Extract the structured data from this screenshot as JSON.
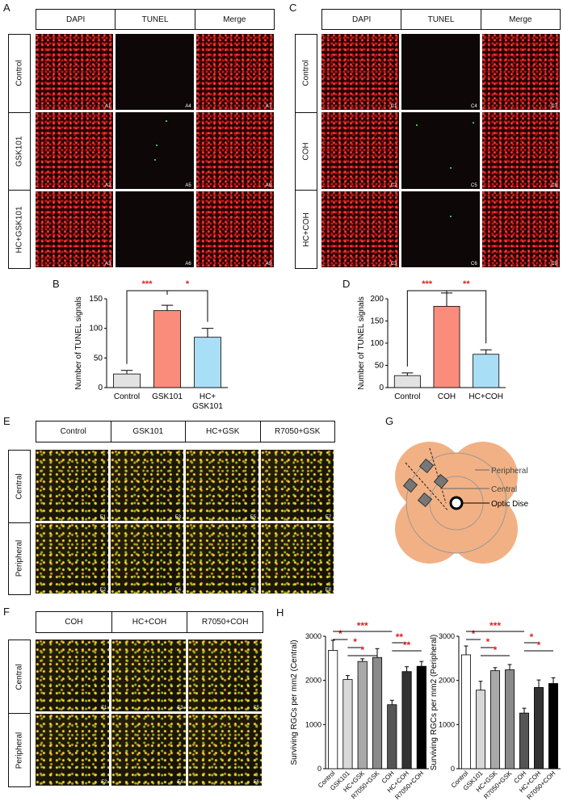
{
  "panel_letters": {
    "a": "A",
    "b": "B",
    "c": "C",
    "d": "D",
    "e": "E",
    "f": "F",
    "g": "G",
    "h": "H"
  },
  "panel_a": {
    "columns": [
      "DAPI",
      "TUNEL",
      "Merge"
    ],
    "rows": [
      "Control",
      "GSK101",
      "HC+GSK101"
    ],
    "tile_ids": [
      [
        "A1",
        "A4",
        "A7"
      ],
      [
        "A2",
        "A5",
        "A8"
      ],
      [
        "A3",
        "A6",
        "A9"
      ]
    ]
  },
  "panel_c": {
    "columns": [
      "DAPI",
      "TUNEL",
      "Merge"
    ],
    "rows": [
      "Control",
      "COH",
      "HC+COH"
    ],
    "tile_ids": [
      [
        "C1",
        "C4",
        "C7"
      ],
      [
        "C2",
        "C5",
        "C8"
      ],
      [
        "C3",
        "C6",
        "C9"
      ]
    ]
  },
  "panel_e": {
    "columns": [
      "Control",
      "GSK101",
      "HC+GSK",
      "R7050+GSK"
    ],
    "rows": [
      "Central",
      "Peripheral"
    ],
    "tile_ids": [
      [
        "E1",
        "E3",
        "E5",
        "E7"
      ],
      [
        "E2",
        "E4",
        "E6",
        "E8"
      ]
    ]
  },
  "panel_f": {
    "columns": [
      "COH",
      "HC+COH",
      "R7050+COH"
    ],
    "rows": [
      "Central",
      "Peripheral"
    ],
    "tile_ids": [
      [
        "F1",
        "F3",
        "F5"
      ],
      [
        "F2",
        "F4",
        "F6"
      ]
    ]
  },
  "panel_g": {
    "labels": [
      "Peripheral",
      "Central",
      "Optic Dise"
    ],
    "colors": {
      "petal": "#f2b184",
      "square": "#777777",
      "ring": "#888888"
    }
  },
  "colors": {
    "salmon": "#fa8c7c",
    "lightblue": "#a9def7",
    "lightgray": "#e2e2e2",
    "sig": "#e02020"
  },
  "chart_data": [
    {
      "id": "B",
      "type": "bar",
      "categories": [
        "Control",
        "GSK101",
        "HC+\nGSK101"
      ],
      "values": [
        23,
        130,
        85
      ],
      "errors": [
        6,
        9,
        15
      ],
      "colors": [
        "#e2e2e2",
        "#fa8c7c",
        "#a9def7"
      ],
      "ylabel": "Number of TUNEL signals",
      "ylim": [
        0,
        150
      ],
      "yticks": [
        0,
        50,
        100,
        150
      ],
      "significance": [
        {
          "from": 0,
          "to": 1,
          "label": "***"
        },
        {
          "from": 1,
          "to": 2,
          "label": "*"
        }
      ]
    },
    {
      "id": "D",
      "type": "bar",
      "categories": [
        "Control",
        "COH",
        "HC+COH"
      ],
      "values": [
        27,
        183,
        75
      ],
      "errors": [
        6,
        30,
        10
      ],
      "colors": [
        "#e2e2e2",
        "#fa8c7c",
        "#a9def7"
      ],
      "ylabel": "Number of TUNEL signals",
      "ylim": [
        0,
        200
      ],
      "yticks": [
        0,
        50,
        100,
        150,
        200
      ],
      "significance": [
        {
          "from": 0,
          "to": 1,
          "label": "***"
        },
        {
          "from": 1,
          "to": 2,
          "label": "**"
        }
      ]
    },
    {
      "id": "H1",
      "type": "bar",
      "categories": [
        "Control",
        "GSK101",
        "HC+GSK",
        "R7050+GSK",
        "COH",
        "HC+COH",
        "R7050+COH"
      ],
      "values": [
        2680,
        2020,
        2430,
        2520,
        1450,
        2200,
        2320
      ],
      "errors": [
        230,
        90,
        60,
        200,
        100,
        110,
        110
      ],
      "colors": [
        "#ffffff",
        "#d8d8d8",
        "#a8a8a8",
        "#8a8a8a",
        "#555555",
        "#333333",
        "#000000"
      ],
      "ylabel": "Surviving RGCs per mm2 (Central)",
      "ylim": [
        0,
        3000
      ],
      "yticks": [
        0,
        1000,
        2000,
        3000
      ],
      "significance": [
        {
          "from": 0,
          "to": 1,
          "label": "*",
          "level": 0
        },
        {
          "from": 0,
          "to": 4,
          "label": "***",
          "level": 1
        },
        {
          "from": 1,
          "to": 2,
          "label": "*",
          "level": 2
        },
        {
          "from": 1,
          "to": 3,
          "label": "*",
          "level": 3
        },
        {
          "from": 4,
          "to": 5,
          "label": "**",
          "level": 4
        },
        {
          "from": 4,
          "to": 6,
          "label": "**",
          "level": 5
        }
      ]
    },
    {
      "id": "H2",
      "type": "bar",
      "categories": [
        "Control",
        "GSK101",
        "HC+GSK",
        "R7050+GSK",
        "COH",
        "HC+COH",
        "R7050+COH"
      ],
      "values": [
        2580,
        1780,
        2220,
        2240,
        1260,
        1840,
        1930
      ],
      "errors": [
        200,
        200,
        70,
        120,
        110,
        170,
        130
      ],
      "colors": [
        "#ffffff",
        "#d8d8d8",
        "#a8a8a8",
        "#8a8a8a",
        "#555555",
        "#333333",
        "#000000"
      ],
      "ylabel": "Surviving RGCs per mm2 (Peripheral)",
      "ylim": [
        0,
        3000
      ],
      "yticks": [
        0,
        1000,
        2000,
        3000
      ],
      "significance": [
        {
          "from": 0,
          "to": 1,
          "label": "*",
          "level": 0
        },
        {
          "from": 0,
          "to": 4,
          "label": "***",
          "level": 1
        },
        {
          "from": 1,
          "to": 2,
          "label": "*",
          "level": 2
        },
        {
          "from": 1,
          "to": 3,
          "label": "*",
          "level": 3
        },
        {
          "from": 4,
          "to": 5,
          "label": "*",
          "level": 4
        },
        {
          "from": 4,
          "to": 6,
          "label": "*",
          "level": 5
        }
      ]
    }
  ]
}
